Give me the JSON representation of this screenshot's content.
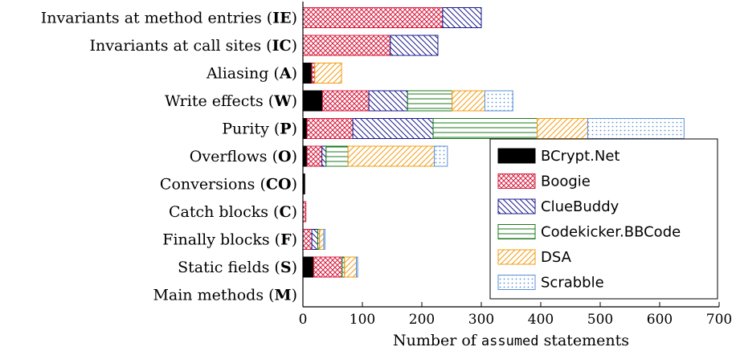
{
  "chart_data": {
    "type": "bar",
    "orientation": "horizontal",
    "stacked": true,
    "categories": [
      {
        "text": "Invariants at method entries",
        "abbr": "IE"
      },
      {
        "text": "Invariants at call sites",
        "abbr": "IC"
      },
      {
        "text": "Aliasing",
        "abbr": "A"
      },
      {
        "text": "Write effects",
        "abbr": "W"
      },
      {
        "text": "Purity",
        "abbr": "P"
      },
      {
        "text": "Overflows",
        "abbr": "O"
      },
      {
        "text": "Conversions",
        "abbr": "CO"
      },
      {
        "text": "Catch blocks",
        "abbr": "C"
      },
      {
        "text": "Finally blocks",
        "abbr": "F"
      },
      {
        "text": "Static fields",
        "abbr": "S"
      },
      {
        "text": "Main methods",
        "abbr": "M"
      }
    ],
    "series": [
      {
        "name": "BCrypt.Net",
        "color": "#000000",
        "pattern": "solid",
        "values": [
          0,
          0,
          15,
          33,
          7,
          7,
          3,
          0,
          0,
          18,
          0
        ]
      },
      {
        "name": "Boogie",
        "color": "#d81c3f",
        "pattern": "crosshatch",
        "values": [
          235,
          147,
          5,
          78,
          77,
          25,
          0,
          5,
          15,
          48,
          0
        ]
      },
      {
        "name": "ClueBuddy",
        "color": "#1a1a8c",
        "pattern": "north-west-lines",
        "values": [
          65,
          80,
          0,
          65,
          135,
          7,
          0,
          0,
          10,
          0,
          0
        ]
      },
      {
        "name": "Codekicker.BBCode",
        "color": "#1a7a1a",
        "pattern": "horizontal-lines",
        "values": [
          0,
          0,
          0,
          75,
          175,
          37,
          0,
          0,
          3,
          4,
          0
        ]
      },
      {
        "name": "DSA",
        "color": "#f39c12",
        "pattern": "north-east-lines",
        "values": [
          0,
          0,
          45,
          55,
          85,
          145,
          0,
          0,
          7,
          20,
          0
        ]
      },
      {
        "name": "Scrabble",
        "color": "#5b8fd6",
        "pattern": "dots",
        "values": [
          0,
          0,
          0,
          47,
          162,
          22,
          0,
          0,
          2,
          2,
          0
        ]
      }
    ],
    "xlabel": {
      "before": "Number of ",
      "code": "assumed",
      "after": " statements"
    },
    "xlim": [
      0,
      700
    ],
    "xticks": [
      "0",
      "100",
      "200",
      "300",
      "400",
      "500",
      "600",
      "700"
    ],
    "legend_position": "bottom-right",
    "grid": false
  }
}
